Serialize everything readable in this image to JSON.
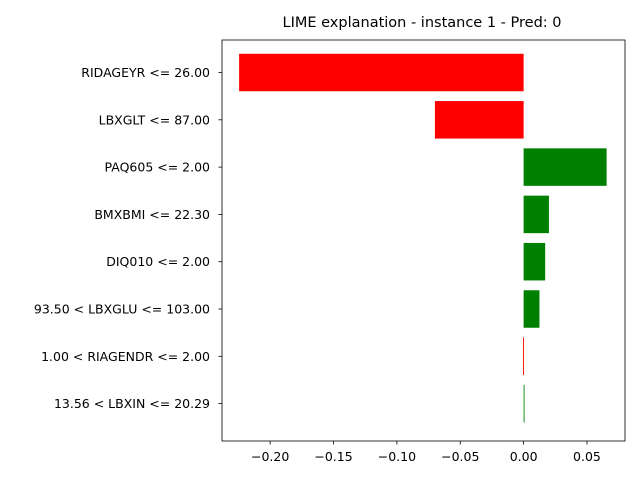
{
  "chart_data": {
    "type": "bar",
    "orientation": "horizontal",
    "title": "LIME explanation - instance 1 - Pred: 0",
    "xlabel": "",
    "ylabel": "",
    "xlim": [
      -0.238,
      0.08
    ],
    "categories": [
      "RIDAGEYR <= 26.00",
      "LBXGLT <= 87.00",
      "PAQ605 <= 2.00",
      "BMXBMI <= 22.30",
      "DIQ010 <= 2.00",
      "93.50 < LBXGLU <= 103.00",
      "1.00 < RIAGENDR <= 2.00",
      "13.56 < LBXIN <= 20.29"
    ],
    "values": [
      -0.2245,
      -0.07,
      0.0655,
      0.02,
      0.017,
      0.0125,
      -0.0005,
      0.0005
    ],
    "xticks": [
      -0.2,
      -0.15,
      -0.1,
      -0.05,
      0.0,
      0.05
    ],
    "xtick_labels": [
      "−0.20",
      "−0.15",
      "−0.10",
      "−0.05",
      "0.00",
      "0.05"
    ],
    "positive_color": "#008000",
    "negative_color": "#ff0000",
    "grid": false
  }
}
